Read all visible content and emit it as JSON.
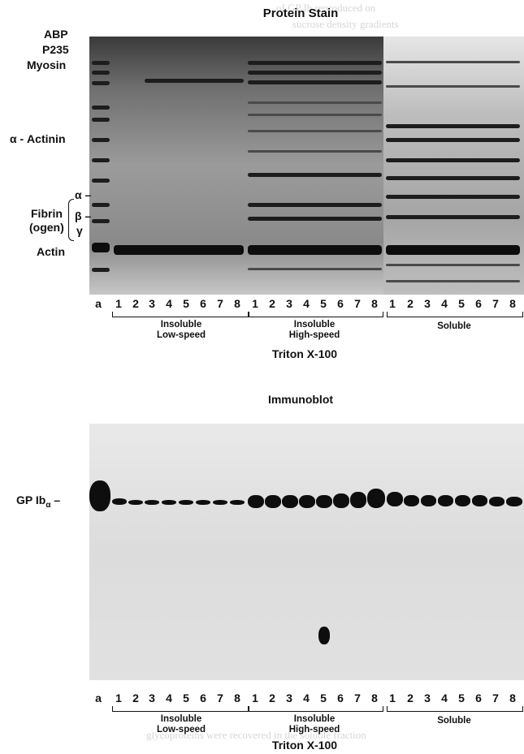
{
  "protein_stain": {
    "title": "Protein Stain",
    "markers": {
      "abp": "ABP",
      "p235": "P235",
      "myosin": "Myosin",
      "actinin": "α - Actinin",
      "alpha": "α –",
      "fibrin": "Fibrin",
      "ogen": "(ogen)",
      "beta": "β –",
      "gamma": "γ",
      "actin": "Actin"
    },
    "lanes": [
      "a",
      "1",
      "2",
      "3",
      "4",
      "5",
      "6",
      "7",
      "8",
      "1",
      "2",
      "3",
      "4",
      "5",
      "6",
      "7",
      "8",
      "1",
      "2",
      "3",
      "4",
      "5",
      "6",
      "7",
      "8"
    ],
    "groups": {
      "low": [
        "Insoluble",
        "Low-speed"
      ],
      "high": [
        "Insoluble",
        "High-speed"
      ],
      "soluble": "Soluble"
    },
    "detergent": "Triton X-100"
  },
  "immunoblot": {
    "title": "Immunoblot",
    "marker": "GP Ib",
    "marker_sub": "α",
    "lanes": [
      "a",
      "1",
      "2",
      "3",
      "4",
      "5",
      "6",
      "7",
      "8",
      "1",
      "2",
      "3",
      "4",
      "5",
      "6",
      "7",
      "8",
      "1",
      "2",
      "3",
      "4",
      "5",
      "6",
      "7",
      "8"
    ],
    "groups": {
      "low": [
        "Insoluble",
        "Low-speed"
      ],
      "high": [
        "Insoluble",
        "High-speed"
      ],
      "soluble": "Soluble"
    },
    "detergent": "Triton X-100"
  }
}
